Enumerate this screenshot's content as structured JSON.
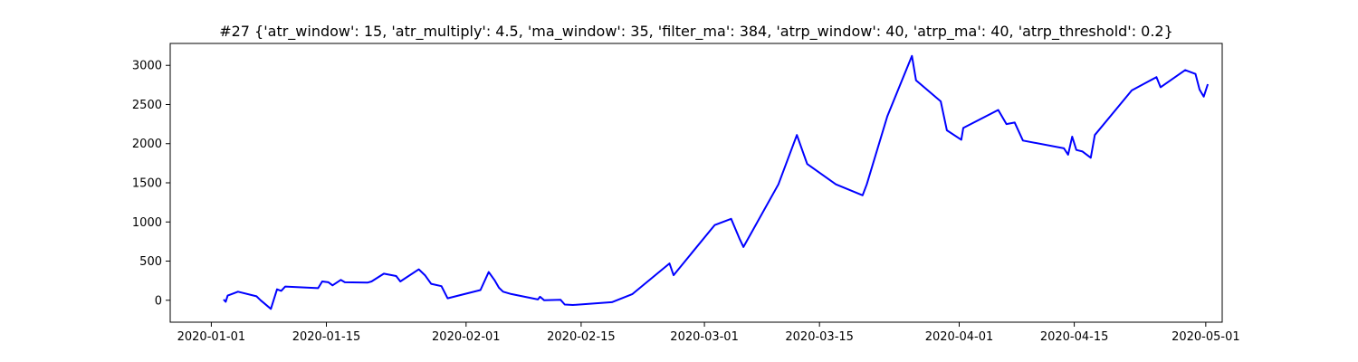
{
  "chart_data": {
    "type": "line",
    "title": "#27 {'atr_window': 15, 'atr_multiply': 4.5, 'ma_window': 35, 'filter_ma': 384, 'atrp_window': 40, 'atrp_ma': 40, 'atrp_threshold': 0.2}",
    "xlabel": "",
    "ylabel": "",
    "x_axis_kind": "date",
    "xlim": [
      "2019-12-27",
      "2020-05-03"
    ],
    "ylim": [
      -280,
      3280
    ],
    "grid": false,
    "legend": "none",
    "x_ticks": [
      {
        "value": "2020-01-01",
        "label": "2020-01-01"
      },
      {
        "value": "2020-01-15",
        "label": "2020-01-15"
      },
      {
        "value": "2020-02-01",
        "label": "2020-02-01"
      },
      {
        "value": "2020-02-15",
        "label": "2020-02-15"
      },
      {
        "value": "2020-03-01",
        "label": "2020-03-01"
      },
      {
        "value": "2020-03-15",
        "label": "2020-03-15"
      },
      {
        "value": "2020-04-01",
        "label": "2020-04-01"
      },
      {
        "value": "2020-04-15",
        "label": "2020-04-15"
      },
      {
        "value": "2020-05-01",
        "label": "2020-05-01"
      }
    ],
    "y_ticks": [
      {
        "value": 0,
        "label": "0"
      },
      {
        "value": 500,
        "label": "500"
      },
      {
        "value": 1000,
        "label": "1000"
      },
      {
        "value": 1500,
        "label": "1500"
      },
      {
        "value": 2000,
        "label": "2000"
      },
      {
        "value": 2500,
        "label": "2500"
      },
      {
        "value": 3000,
        "label": "3000"
      }
    ],
    "series": [
      {
        "color": "#0000ff",
        "points": [
          {
            "x": "2020-01-02 12:00",
            "y": 10
          },
          {
            "x": "2020-01-02 18:00",
            "y": -20
          },
          {
            "x": "2020-01-03",
            "y": 60
          },
          {
            "x": "2020-01-04 06:00",
            "y": 110
          },
          {
            "x": "2020-01-06 12:00",
            "y": 50
          },
          {
            "x": "2020-01-07",
            "y": 0
          },
          {
            "x": "2020-01-08 06:00",
            "y": -110
          },
          {
            "x": "2020-01-09",
            "y": 140
          },
          {
            "x": "2020-01-09 12:00",
            "y": 120
          },
          {
            "x": "2020-01-10",
            "y": 175
          },
          {
            "x": "2020-01-14",
            "y": 155
          },
          {
            "x": "2020-01-14 12:00",
            "y": 240
          },
          {
            "x": "2020-01-15 06:00",
            "y": 230
          },
          {
            "x": "2020-01-15 18:00",
            "y": 190
          },
          {
            "x": "2020-01-16 18:00",
            "y": 260
          },
          {
            "x": "2020-01-17 06:00",
            "y": 230
          },
          {
            "x": "2020-01-20",
            "y": 225
          },
          {
            "x": "2020-01-20 12:00",
            "y": 240
          },
          {
            "x": "2020-01-22",
            "y": 340
          },
          {
            "x": "2020-01-23 12:00",
            "y": 310
          },
          {
            "x": "2020-01-24",
            "y": 240
          },
          {
            "x": "2020-01-26 06:00",
            "y": 395
          },
          {
            "x": "2020-01-27",
            "y": 320
          },
          {
            "x": "2020-01-27 18:00",
            "y": 210
          },
          {
            "x": "2020-01-29",
            "y": 180
          },
          {
            "x": "2020-01-29 18:00",
            "y": 25
          },
          {
            "x": "2020-02-02 18:00",
            "y": 130
          },
          {
            "x": "2020-02-03 18:00",
            "y": 360
          },
          {
            "x": "2020-02-04 12:00",
            "y": 250
          },
          {
            "x": "2020-02-05",
            "y": 160
          },
          {
            "x": "2020-02-05 12:00",
            "y": 110
          },
          {
            "x": "2020-02-06 12:00",
            "y": 80
          },
          {
            "x": "2020-02-09 18:00",
            "y": 10
          },
          {
            "x": "2020-02-10",
            "y": 45
          },
          {
            "x": "2020-02-10 12:00",
            "y": 0
          },
          {
            "x": "2020-02-12 12:00",
            "y": 5
          },
          {
            "x": "2020-02-13",
            "y": -55
          },
          {
            "x": "2020-02-14",
            "y": -60
          },
          {
            "x": "2020-02-18 18:00",
            "y": -25
          },
          {
            "x": "2020-02-21 06:00",
            "y": 80
          },
          {
            "x": "2020-02-25 18:00",
            "y": 470
          },
          {
            "x": "2020-02-26 06:00",
            "y": 320
          },
          {
            "x": "2020-03-02 06:00",
            "y": 960
          },
          {
            "x": "2020-03-04 06:00",
            "y": 1040
          },
          {
            "x": "2020-03-05 06:00",
            "y": 790
          },
          {
            "x": "2020-03-05 18:00",
            "y": 680
          },
          {
            "x": "2020-03-10",
            "y": 1480
          },
          {
            "x": "2020-03-12 06:00",
            "y": 2110
          },
          {
            "x": "2020-03-13 12:00",
            "y": 1740
          },
          {
            "x": "2020-03-17",
            "y": 1480
          },
          {
            "x": "2020-03-20 06:00",
            "y": 1340
          },
          {
            "x": "2020-03-20 18:00",
            "y": 1480
          },
          {
            "x": "2020-03-23 06:00",
            "y": 2350
          },
          {
            "x": "2020-03-26 06:00",
            "y": 3120
          },
          {
            "x": "2020-03-26 18:00",
            "y": 2810
          },
          {
            "x": "2020-03-29 18:00",
            "y": 2540
          },
          {
            "x": "2020-03-30 12:00",
            "y": 2170
          },
          {
            "x": "2020-04-01 06:00",
            "y": 2050
          },
          {
            "x": "2020-04-01 12:00",
            "y": 2200
          },
          {
            "x": "2020-04-05 18:00",
            "y": 2430
          },
          {
            "x": "2020-04-06 18:00",
            "y": 2250
          },
          {
            "x": "2020-04-07 18:00",
            "y": 2270
          },
          {
            "x": "2020-04-08 18:00",
            "y": 2040
          },
          {
            "x": "2020-04-13 18:00",
            "y": 1940
          },
          {
            "x": "2020-04-14 06:00",
            "y": 1860
          },
          {
            "x": "2020-04-14 18:00",
            "y": 2090
          },
          {
            "x": "2020-04-15 06:00",
            "y": 1920
          },
          {
            "x": "2020-04-16",
            "y": 1900
          },
          {
            "x": "2020-04-17",
            "y": 1820
          },
          {
            "x": "2020-04-17 12:00",
            "y": 2110
          },
          {
            "x": "2020-04-22",
            "y": 2680
          },
          {
            "x": "2020-04-25",
            "y": 2850
          },
          {
            "x": "2020-04-25 12:00",
            "y": 2720
          },
          {
            "x": "2020-04-28 12:00",
            "y": 2940
          },
          {
            "x": "2020-04-29 18:00",
            "y": 2890
          },
          {
            "x": "2020-04-30 06:00",
            "y": 2690
          },
          {
            "x": "2020-04-30 18:00",
            "y": 2600
          },
          {
            "x": "2020-05-01 06:00",
            "y": 2760
          }
        ]
      }
    ]
  }
}
